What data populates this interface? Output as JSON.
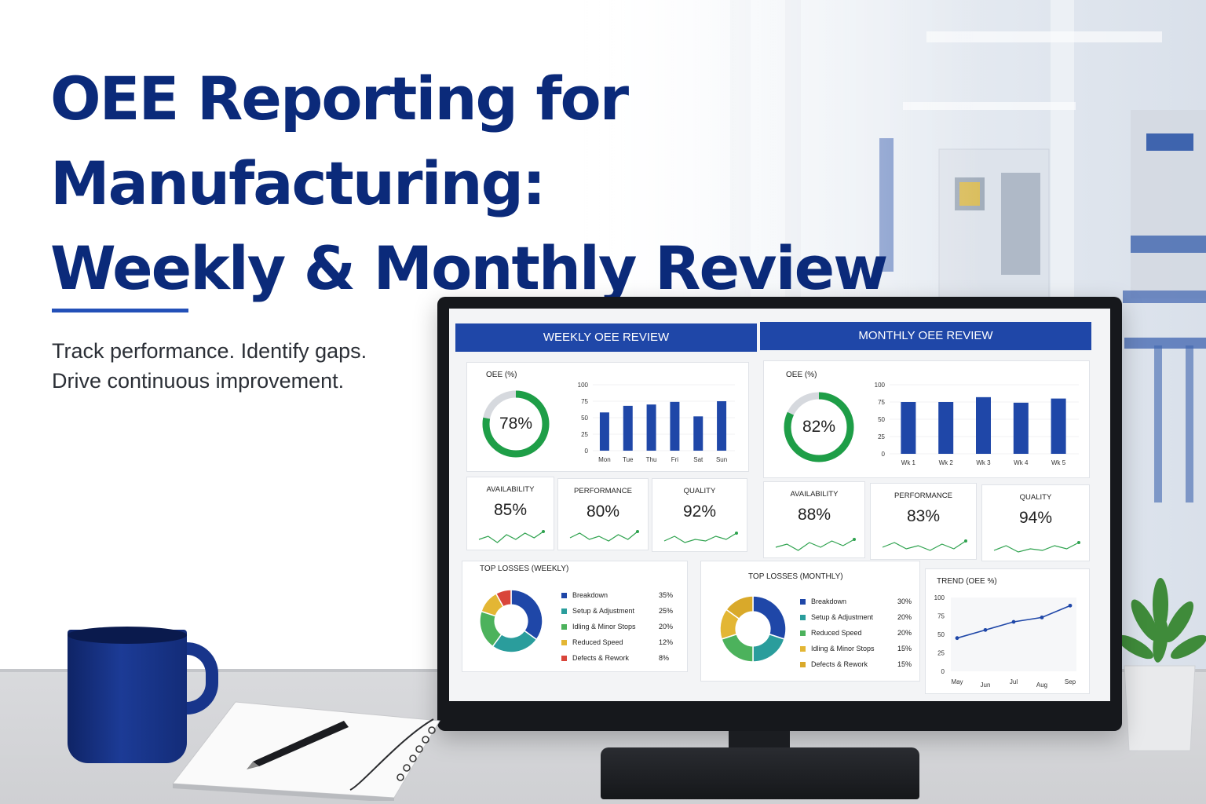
{
  "hero": {
    "title_line1": "OEE Reporting for",
    "title_line2": "Manufacturing:",
    "title_line3": "Weekly & Monthly Review",
    "subtitle_line1": "Track performance. Identify gaps.",
    "subtitle_line2": "Drive continuous improvement."
  },
  "weekly": {
    "header": "WEEKLY OEE REVIEW",
    "oee_label": "OEE (%)",
    "oee_value": "78%",
    "oee_fraction": 0.78,
    "y_ticks": [
      "100",
      "75",
      "50",
      "25",
      "0"
    ],
    "chart_data": {
      "type": "bar",
      "categories": [
        "Mon",
        "Tue",
        "Thu",
        "Fri",
        "Sat",
        "Sun"
      ],
      "values": [
        58,
        68,
        70,
        74,
        52,
        75
      ],
      "ylim": [
        0,
        100
      ]
    },
    "kpis": [
      {
        "label": "AVAILABILITY",
        "value": "85%"
      },
      {
        "label": "PERFORMANCE",
        "value": "80%"
      },
      {
        "label": "QUALITY",
        "value": "92%"
      }
    ],
    "losses_title": "TOP LOSSES (WEEKLY)",
    "losses": [
      {
        "name": "Breakdown",
        "pct": "35%",
        "color": "#1f47a8"
      },
      {
        "name": "Setup & Adjustment",
        "pct": "25%",
        "color": "#2a9d9c"
      },
      {
        "name": "Idling & Minor Stops",
        "pct": "20%",
        "color": "#4cb25c"
      },
      {
        "name": "Reduced Speed",
        "pct": "12%",
        "color": "#e3b634"
      },
      {
        "name": "Defects & Rework",
        "pct": "8%",
        "color": "#d9453a"
      }
    ]
  },
  "monthly": {
    "header": "MONTHLY OEE REVIEW",
    "oee_label": "OEE (%)",
    "oee_value": "82%",
    "oee_fraction": 0.82,
    "y_ticks": [
      "100",
      "75",
      "50",
      "25",
      "0"
    ],
    "chart_data": {
      "type": "bar",
      "categories": [
        "Wk 1",
        "Wk 2",
        "Wk 3",
        "Wk 4",
        "Wk 5"
      ],
      "values": [
        75,
        75,
        82,
        74,
        80
      ],
      "ylim": [
        0,
        100
      ]
    },
    "kpis": [
      {
        "label": "AVAILABILITY",
        "value": "88%"
      },
      {
        "label": "PERFORMANCE",
        "value": "83%"
      },
      {
        "label": "QUALITY",
        "value": "94%"
      }
    ],
    "losses_title": "TOP LOSSES (MONTHLY)",
    "losses": [
      {
        "name": "Breakdown",
        "pct": "30%",
        "color": "#1f47a8"
      },
      {
        "name": "Setup & Adjustment",
        "pct": "20%",
        "color": "#2a9d9c"
      },
      {
        "name": "Reduced Speed",
        "pct": "20%",
        "color": "#4cb25c"
      },
      {
        "name": "Idling & Minor Stops",
        "pct": "15%",
        "color": "#e3b634"
      },
      {
        "name": "Defects & Rework",
        "pct": "15%",
        "color": "#d9a92a"
      }
    ],
    "trend_title": "TREND (OEE %)",
    "trend_y_ticks": [
      "100",
      "75",
      "50",
      "25",
      "0"
    ],
    "trend_chart": {
      "type": "line",
      "x": [
        "May",
        "Jun",
        "Jul",
        "Aug",
        "Sep"
      ],
      "values": [
        45,
        56,
        67,
        73,
        89
      ],
      "ylim": [
        0,
        100
      ]
    }
  },
  "colors": {
    "brand": "#1f47a8",
    "title": "#0b2a7a",
    "good": "#1e9e47"
  }
}
